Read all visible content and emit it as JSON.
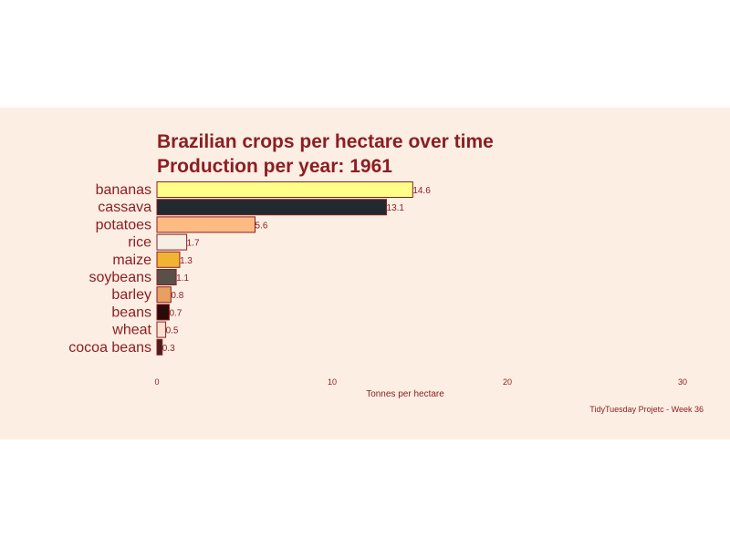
{
  "chart_data": {
    "type": "bar",
    "orientation": "horizontal",
    "title": "Brazilian crops per hectare over time",
    "subtitle": "Production per year: 1961",
    "xlabel": "Tonnes per hectare",
    "ylabel": "",
    "xlim": [
      0,
      30
    ],
    "xticks": [
      "0",
      "10",
      "20",
      "30"
    ],
    "grid": false,
    "legend": "none",
    "caption": "TidyTuesday Projetc - Week 36",
    "categories": [
      "bananas",
      "cassava",
      "potatoes",
      "rice",
      "maize",
      "soybeans",
      "barley",
      "beans",
      "wheat",
      "cocoa beans"
    ],
    "values": [
      14.6,
      13.1,
      5.6,
      1.7,
      1.3,
      1.1,
      0.8,
      0.7,
      0.5,
      0.3
    ],
    "value_labels": [
      "14.6",
      "13.1",
      "5.6",
      "1.7",
      "1.3",
      "1.1",
      "0.8",
      "0.7",
      "0.5",
      "0.3"
    ],
    "colors": [
      "#ffff88",
      "#222a30",
      "#fdbb84",
      "#f6efe4",
      "#f0b432",
      "#595048",
      "#e6a060",
      "#2b0a0a",
      "#fde0cf",
      "#4a1f1f"
    ],
    "outline_color": "#8b1e22"
  }
}
